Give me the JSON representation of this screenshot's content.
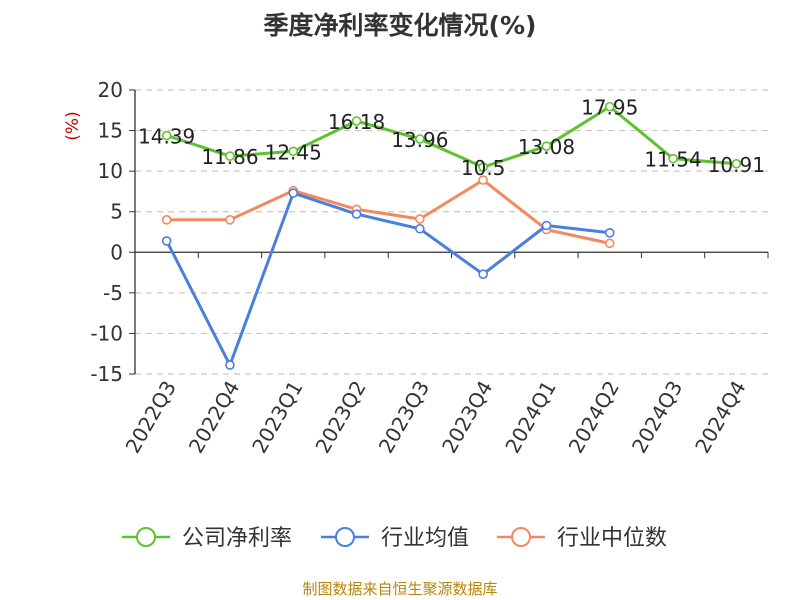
{
  "chart_data": {
    "type": "line",
    "title": "季度净利率变化情况(%)",
    "ylabel": "(%)",
    "xlabel": "",
    "categories": [
      "2022Q3",
      "2022Q4",
      "2023Q1",
      "2023Q2",
      "2023Q3",
      "2023Q4",
      "2024Q1",
      "2024Q2",
      "2024Q3",
      "2024Q4"
    ],
    "ylim": [
      -15,
      20
    ],
    "yticks": [
      -15,
      -10,
      -5,
      0,
      5,
      10,
      15,
      20
    ],
    "grid": true,
    "legend_position": "bottom",
    "series": [
      {
        "name": "公司净利率",
        "color": "#5ec22f",
        "values": [
          14.39,
          11.86,
          12.45,
          16.18,
          13.96,
          10.5,
          13.08,
          17.95,
          11.54,
          10.91
        ],
        "labels": [
          "14.39",
          "11.86",
          "12.45",
          "16.18",
          "13.96",
          "10.5",
          "13.08",
          "17.95",
          "11.54",
          "10.91"
        ]
      },
      {
        "name": "行业均值",
        "color": "#4a7fdc",
        "values": [
          1.4,
          -13.9,
          7.3,
          4.7,
          2.9,
          -2.7,
          3.3,
          2.4,
          null,
          null
        ]
      },
      {
        "name": "行业中位数",
        "color": "#f38a5d",
        "values": [
          4.0,
          4.0,
          7.6,
          5.3,
          4.1,
          8.9,
          2.8,
          1.1,
          null,
          null
        ]
      }
    ]
  },
  "footer": {
    "source": "制图数据来自恒生聚源数据库"
  }
}
